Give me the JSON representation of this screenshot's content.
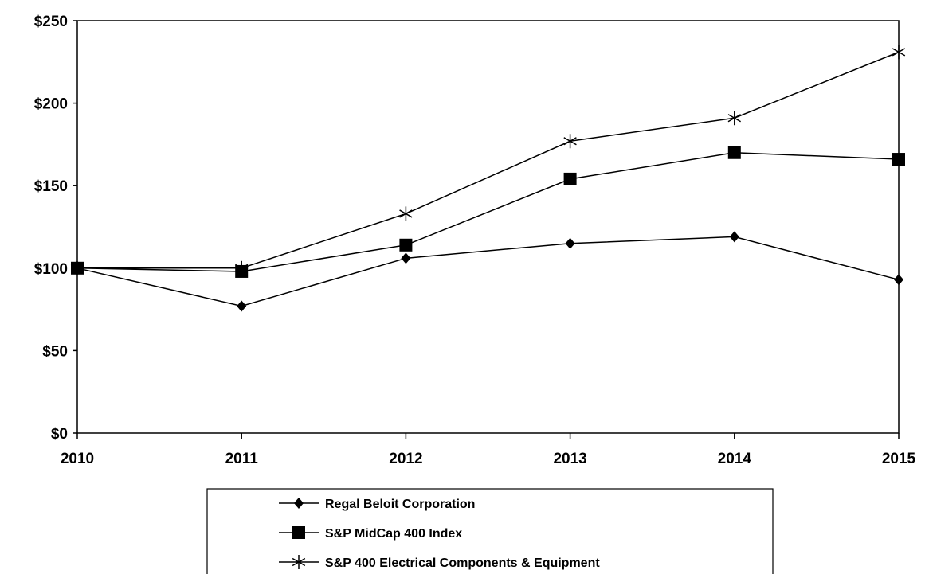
{
  "chart_data": {
    "type": "line",
    "title": "",
    "xlabel": "",
    "ylabel": "",
    "categories": [
      "2010",
      "2011",
      "2012",
      "2013",
      "2014",
      "2015"
    ],
    "y_ticks": [
      0,
      50,
      100,
      150,
      200,
      250
    ],
    "y_tick_labels": [
      "$0",
      "$50",
      "$100",
      "$150",
      "$200",
      "$250"
    ],
    "ylim": [
      0,
      250
    ],
    "grid": false,
    "legend_position": "bottom",
    "series": [
      {
        "name": "Regal Beloit Corporation",
        "marker": "diamond",
        "color": "#000000",
        "values": [
          100,
          77,
          106,
          115,
          119,
          93
        ]
      },
      {
        "name": "S&P MidCap 400 Index",
        "marker": "square",
        "color": "#000000",
        "values": [
          100,
          98,
          114,
          154,
          170,
          166
        ]
      },
      {
        "name": "S&P 400 Electrical Components & Equipment",
        "marker": "asterisk",
        "color": "#000000",
        "values": [
          100,
          100,
          133,
          177,
          191,
          231
        ]
      }
    ]
  }
}
